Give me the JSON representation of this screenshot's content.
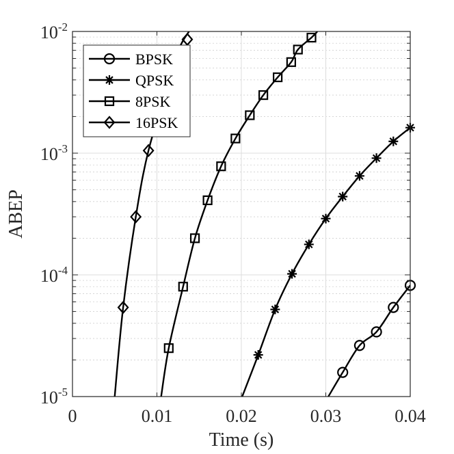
{
  "chart_data": {
    "type": "line",
    "xlabel": "Time (s)",
    "ylabel": "ABEP",
    "xlim": [
      0,
      0.04
    ],
    "ylim": [
      1e-05,
      0.01
    ],
    "yscale": "log",
    "grid": true,
    "minor_grid": true,
    "legend_position": "top-left",
    "x_ticks": [
      {
        "value": 0,
        "label": "0"
      },
      {
        "value": 0.01,
        "label": "0.01"
      },
      {
        "value": 0.02,
        "label": "0.02"
      },
      {
        "value": 0.03,
        "label": "0.03"
      },
      {
        "value": 0.04,
        "label": "0.04"
      }
    ],
    "y_ticks": [
      {
        "value": 1e-05,
        "base": "10",
        "exp": "-5"
      },
      {
        "value": 0.0001,
        "base": "10",
        "exp": "-4"
      },
      {
        "value": 0.001,
        "base": "10",
        "exp": "-3"
      },
      {
        "value": 0.01,
        "base": "10",
        "exp": "-2"
      }
    ],
    "series": [
      {
        "name": "BPSK",
        "marker": "circle",
        "curve": [
          [
            0.0303,
            1e-05
          ],
          [
            0.032,
            1.58e-05
          ],
          [
            0.034,
            2.63e-05
          ],
          [
            0.036,
            3.4e-05
          ],
          [
            0.038,
            5.4e-05
          ],
          [
            0.04,
            8.2e-05
          ]
        ],
        "markers": [
          [
            0.032,
            1.58e-05
          ],
          [
            0.034,
            2.63e-05
          ],
          [
            0.036,
            3.4e-05
          ],
          [
            0.038,
            5.4e-05
          ],
          [
            0.04,
            8.2e-05
          ]
        ]
      },
      {
        "name": "QPSK",
        "marker": "asterisk",
        "curve": [
          [
            0.0201,
            1e-05
          ],
          [
            0.022,
            2.2e-05
          ],
          [
            0.024,
            5.2e-05
          ],
          [
            0.026,
            0.000102
          ],
          [
            0.028,
            0.000178
          ],
          [
            0.03,
            0.00029
          ],
          [
            0.032,
            0.00044
          ],
          [
            0.034,
            0.00065
          ],
          [
            0.036,
            0.00091
          ],
          [
            0.038,
            0.00125
          ],
          [
            0.04,
            0.00162
          ]
        ],
        "markers": [
          [
            0.022,
            2.2e-05
          ],
          [
            0.024,
            5.2e-05
          ],
          [
            0.026,
            0.000102
          ],
          [
            0.028,
            0.000178
          ],
          [
            0.03,
            0.00029
          ],
          [
            0.032,
            0.00044
          ],
          [
            0.034,
            0.00065
          ],
          [
            0.036,
            0.00091
          ],
          [
            0.038,
            0.00125
          ],
          [
            0.04,
            0.00162
          ]
        ]
      },
      {
        "name": "8PSK",
        "marker": "square",
        "curve": [
          [
            0.0105,
            1e-05
          ],
          [
            0.0114,
            2.5e-05
          ],
          [
            0.0131,
            8e-05
          ],
          [
            0.0145,
            0.0002
          ],
          [
            0.016,
            0.00041
          ],
          [
            0.0176,
            0.00078
          ],
          [
            0.0193,
            0.00132
          ],
          [
            0.021,
            0.00205
          ],
          [
            0.0226,
            0.003
          ],
          [
            0.0243,
            0.0042
          ],
          [
            0.0259,
            0.0056
          ],
          [
            0.0267,
            0.0071
          ],
          [
            0.0283,
            0.0089
          ],
          [
            0.029,
            0.01
          ]
        ],
        "markers": [
          [
            0.0114,
            2.5e-05
          ],
          [
            0.0131,
            8e-05
          ],
          [
            0.0145,
            0.0002
          ],
          [
            0.016,
            0.00041
          ],
          [
            0.0176,
            0.00078
          ],
          [
            0.0193,
            0.00132
          ],
          [
            0.021,
            0.00205
          ],
          [
            0.0226,
            0.003
          ],
          [
            0.0243,
            0.0042
          ],
          [
            0.0259,
            0.0056
          ],
          [
            0.0267,
            0.0071
          ],
          [
            0.0283,
            0.0089
          ]
        ]
      },
      {
        "name": "16PSK",
        "marker": "diamond",
        "curve": [
          [
            0.005,
            1e-05
          ],
          [
            0.006,
            5.4e-05
          ],
          [
            0.0075,
            0.0003
          ],
          [
            0.009,
            0.00105
          ],
          [
            0.0115,
            0.004
          ],
          [
            0.0127,
            0.0074
          ],
          [
            0.0138,
            0.01
          ]
        ],
        "markers": [
          [
            0.006,
            5.4e-05
          ],
          [
            0.0075,
            0.0003
          ],
          [
            0.009,
            0.00105
          ],
          [
            0.0136,
            0.0086
          ]
        ]
      }
    ]
  }
}
